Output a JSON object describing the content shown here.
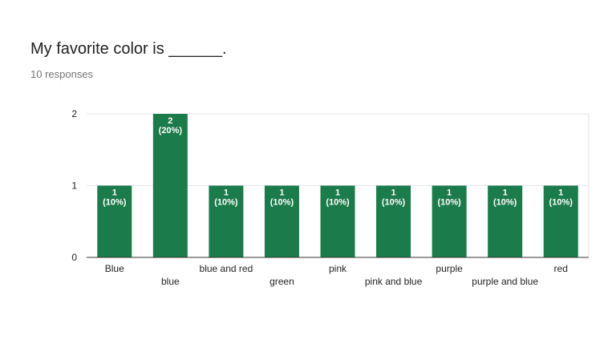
{
  "question": {
    "title": "My favorite color is ______.",
    "responses": "10 responses"
  },
  "colors": {
    "bar": "#1b7b4a",
    "grid": "#e6e6e6",
    "axis": "#333333"
  },
  "chart_data": {
    "type": "bar",
    "categories": [
      "Blue",
      "blue",
      "blue and red",
      "green",
      "pink",
      "pink and blue",
      "purple",
      "purple and blue",
      "red"
    ],
    "values": [
      1,
      2,
      1,
      1,
      1,
      1,
      1,
      1,
      1
    ],
    "data_labels": [
      [
        "1",
        "(10%)"
      ],
      [
        "2",
        "(20%)"
      ],
      [
        "1",
        "(10%)"
      ],
      [
        "1",
        "(10%)"
      ],
      [
        "1",
        "(10%)"
      ],
      [
        "1",
        "(10%)"
      ],
      [
        "1",
        "(10%)"
      ],
      [
        "1",
        "(10%)"
      ],
      [
        "1",
        "(10%)"
      ]
    ],
    "title": "",
    "xlabel": "",
    "ylabel": "",
    "ylim": [
      0,
      2
    ],
    "yticks": [
      0,
      1,
      2
    ],
    "grid": true
  }
}
